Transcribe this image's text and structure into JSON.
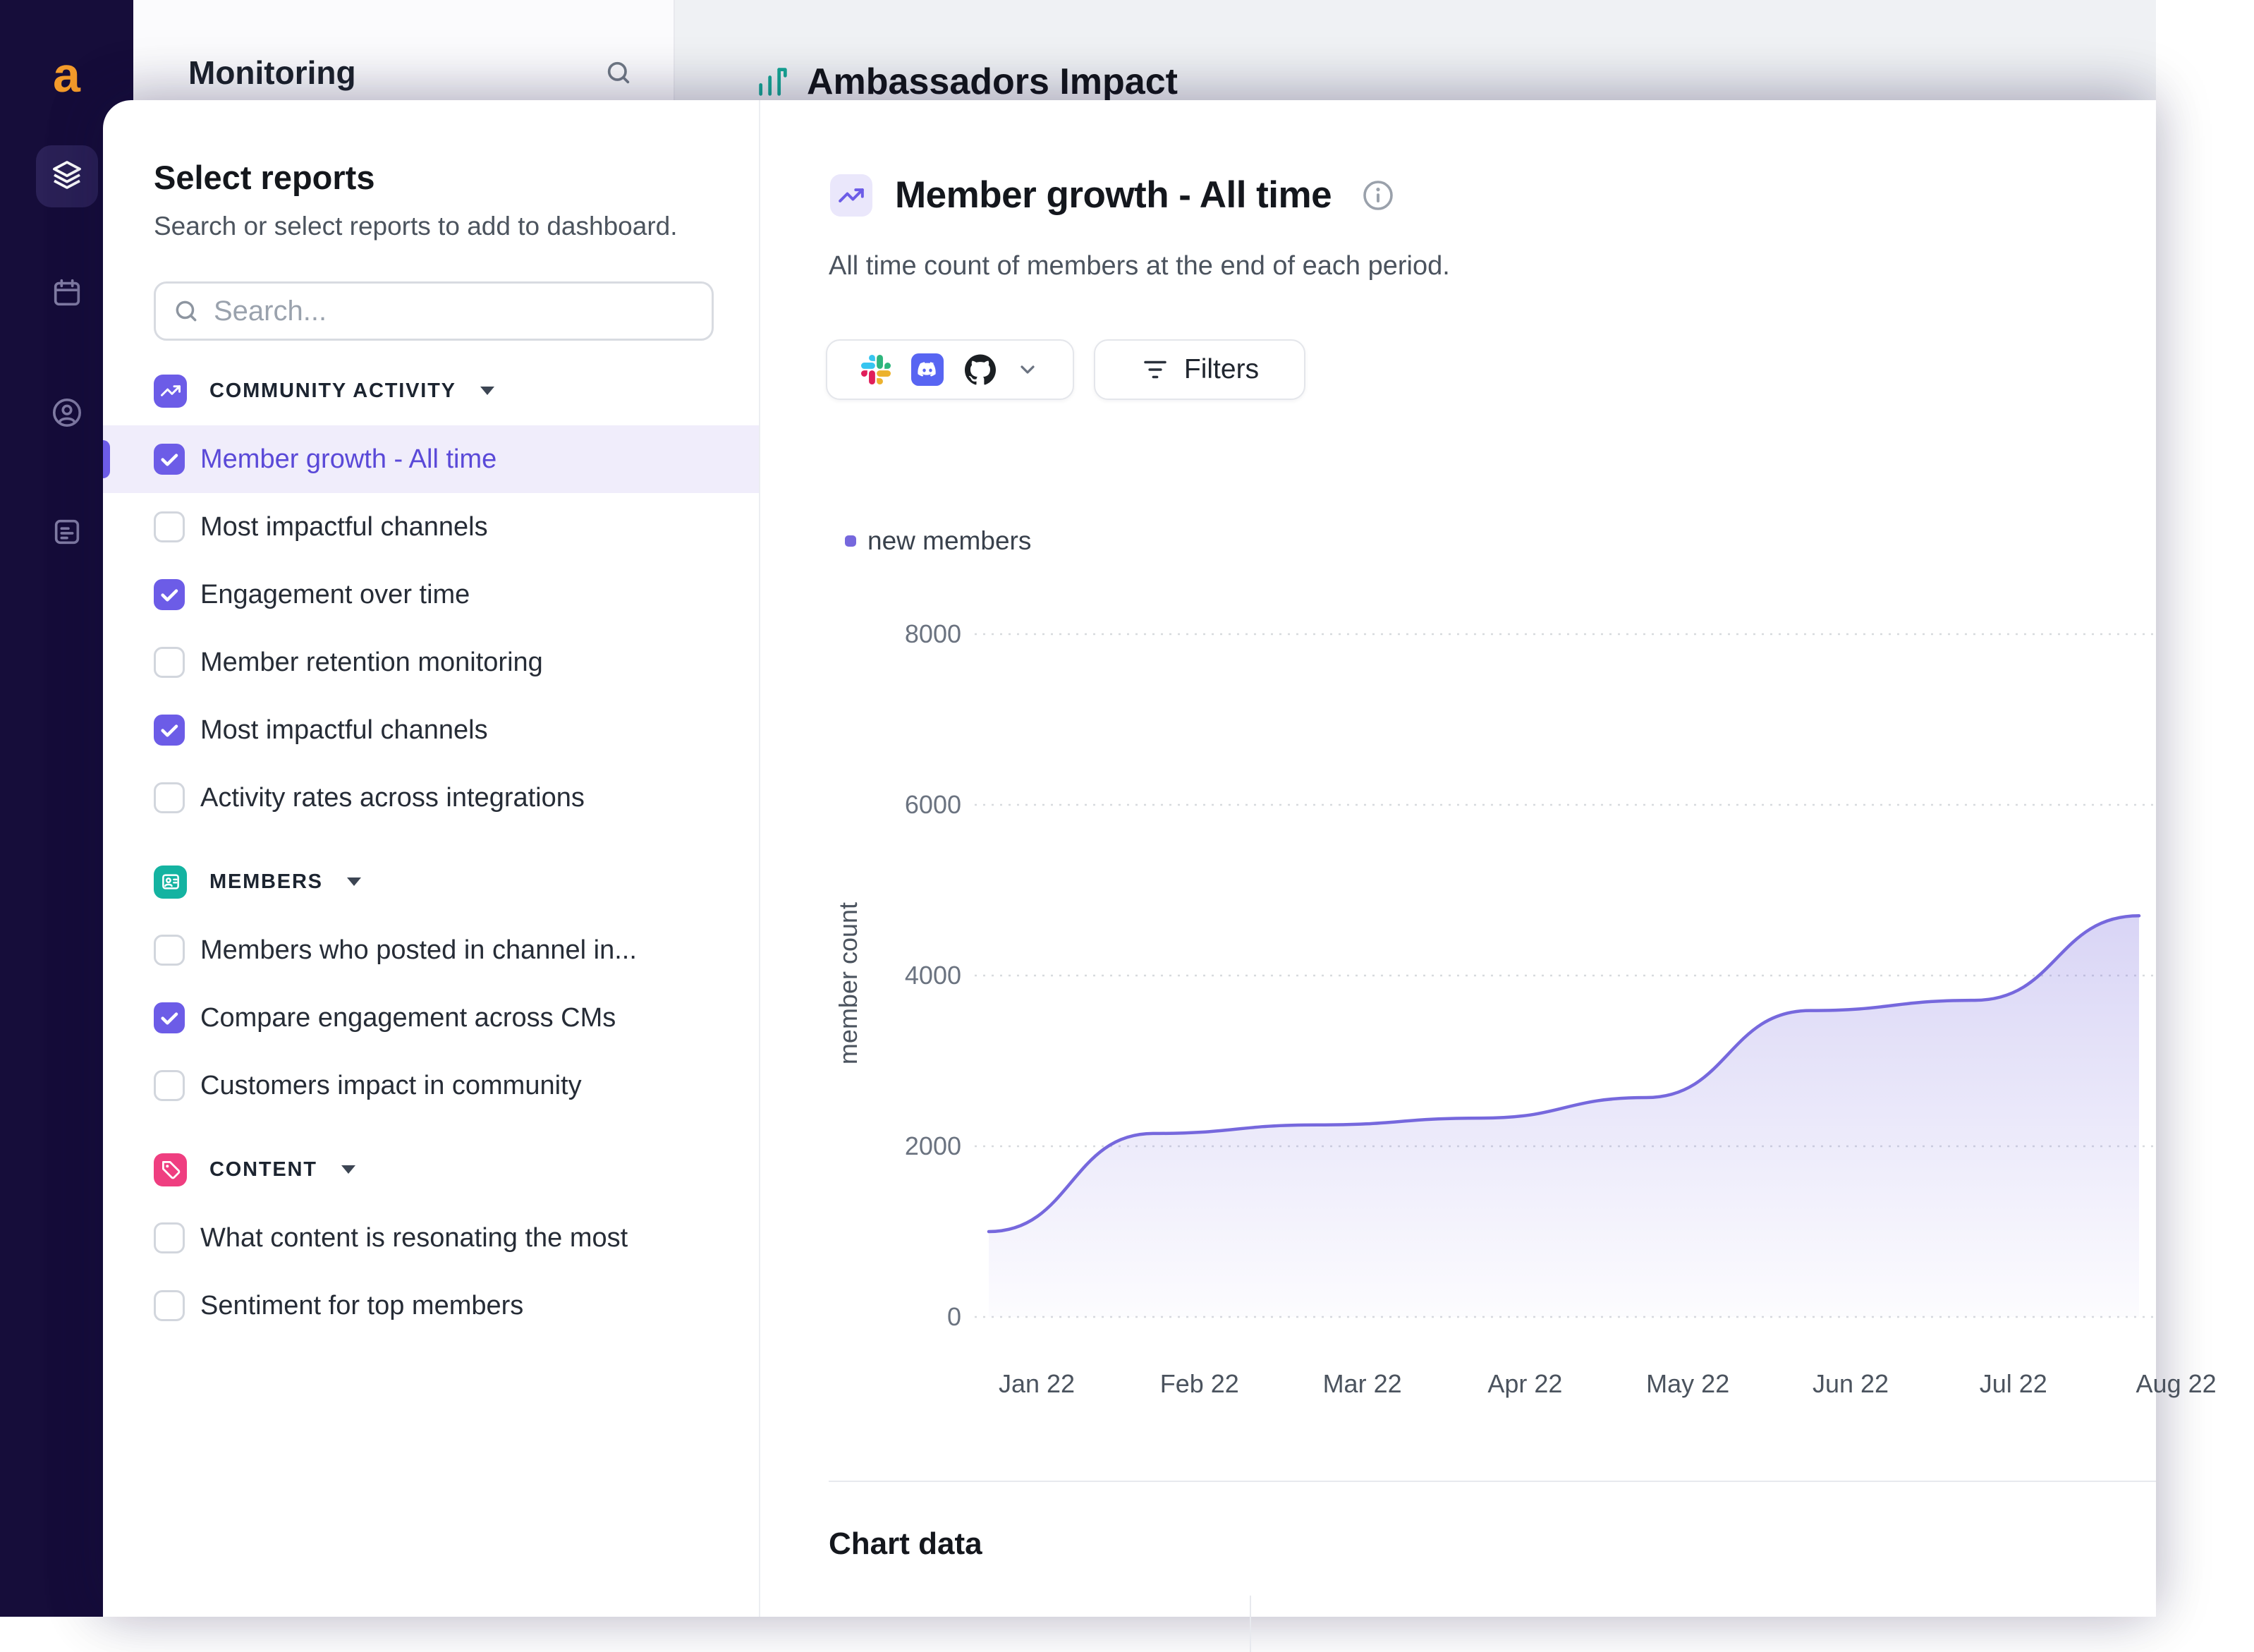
{
  "app": {
    "logo_letter": "a"
  },
  "background": {
    "monitoring_title": "Monitoring",
    "page_title": "Ambassadors Impact"
  },
  "panel": {
    "title": "Select reports",
    "subtitle": "Search or select reports to add to dashboard.",
    "search_placeholder": "Search...",
    "sections": [
      {
        "label": "COMMUNITY ACTIVITY",
        "icon": "trending-up",
        "color": "#6c5ce7",
        "items": [
          {
            "label": "Member growth - All time",
            "checked": true,
            "selected": true
          },
          {
            "label": "Most impactful channels",
            "checked": false
          },
          {
            "label": "Engagement over time",
            "checked": true
          },
          {
            "label": "Member retention monitoring",
            "checked": false
          },
          {
            "label": "Most impactful channels",
            "checked": true
          },
          {
            "label": "Activity rates across integrations",
            "checked": false
          }
        ]
      },
      {
        "label": "MEMBERS",
        "icon": "members",
        "color": "#14b3a1",
        "items": [
          {
            "label": "Members who posted in channel in...",
            "checked": false
          },
          {
            "label": "Compare engagement across CMs",
            "checked": true
          },
          {
            "label": "Customers impact in community",
            "checked": false
          }
        ]
      },
      {
        "label": "CONTENT",
        "icon": "tag",
        "color": "#ef3e80",
        "items": [
          {
            "label": "What content is resonating the most",
            "checked": false
          },
          {
            "label": "Sentiment for top members",
            "checked": false
          }
        ]
      }
    ]
  },
  "report": {
    "title": "Member growth - All time",
    "subtitle": "All time count of members at the end of each period.",
    "filters_label": "Filters",
    "chart_data_heading": "Chart data"
  },
  "colors": {
    "accent": "#6c5ce7",
    "selected_row_bg": "#f0edfb",
    "members_section": "#14b3a1",
    "content_section": "#ef3e80",
    "line": "#7668dd"
  },
  "chart_data": {
    "type": "area",
    "title": "Member growth - All time",
    "series_name": "new members",
    "x": [
      "Jan 22",
      "Feb 22",
      "Mar 22",
      "Apr 22",
      "May 22",
      "Jun 22",
      "Jul 22",
      "Aug 22"
    ],
    "values": [
      1000,
      2150,
      2250,
      2330,
      2570,
      3590,
      3710,
      4700
    ],
    "ylabel": "member count",
    "xlabel": "",
    "y_ticks": [
      8000,
      6000,
      4000,
      2000,
      0
    ],
    "ylim": [
      0,
      8800
    ],
    "grid": "horizontal-dashed",
    "legend_position": "top-left",
    "line_color": "#7668dd"
  }
}
